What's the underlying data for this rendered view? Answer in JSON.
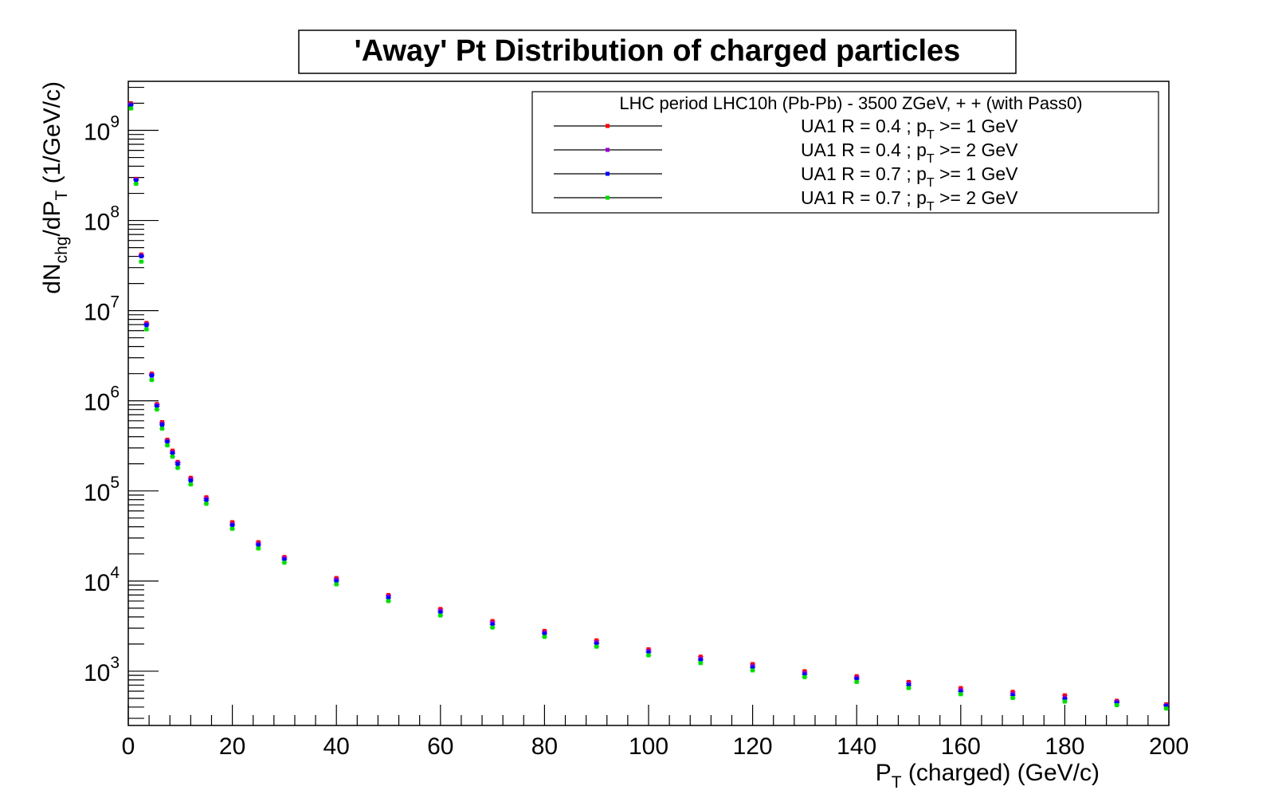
{
  "chart_data": {
    "type": "scatter",
    "title": "'Away' Pt Distribution of charged particles",
    "xlabel": {
      "main": "P",
      "sub": "T",
      "rest": " (charged) (GeV/c)"
    },
    "ylabel": {
      "p1": "dN",
      "sub1": "chg",
      "p2": "/dP",
      "sub2": "T",
      "p3": " (1/GeV/c)"
    },
    "x_ticks": [
      "0",
      "20",
      "40",
      "60",
      "80",
      "100",
      "120",
      "140",
      "160",
      "180",
      "200"
    ],
    "y_ticks": [
      {
        "base": "10",
        "exp": "3"
      },
      {
        "base": "10",
        "exp": "4"
      },
      {
        "base": "10",
        "exp": "5"
      },
      {
        "base": "10",
        "exp": "6"
      },
      {
        "base": "10",
        "exp": "7"
      },
      {
        "base": "10",
        "exp": "8"
      },
      {
        "base": "10",
        "exp": "9"
      }
    ],
    "xlim": [
      0,
      200
    ],
    "ylim": [
      250,
      3500000000
    ],
    "y_scale": "log",
    "grid": false,
    "legend_position": "top-right",
    "legend": {
      "header": "LHC period LHC10h (Pb-Pb) - 3500 ZGeV, + + (with Pass0)",
      "entries": [
        {
          "pre": "UA1 R = 0.4 ; p",
          "sub": "T",
          "post": " >= 1 GeV"
        },
        {
          "pre": "UA1 R = 0.4 ; p",
          "sub": "T",
          "post": " >= 2 GeV"
        },
        {
          "pre": "UA1 R = 0.7 ; p",
          "sub": "T",
          "post": " >= 1 GeV"
        },
        {
          "pre": "UA1 R = 0.7 ; p",
          "sub": "T",
          "post": " >= 2 GeV"
        }
      ]
    },
    "x": [
      0.5,
      1.5,
      2.5,
      3.5,
      4.5,
      5.5,
      6.5,
      7.5,
      8.5,
      9.5,
      12,
      15,
      20,
      25,
      30,
      40,
      50,
      60,
      70,
      80,
      90,
      100,
      110,
      120,
      130,
      140,
      150,
      160,
      170,
      180,
      190,
      199.5
    ],
    "series": [
      {
        "color": "#ff0000",
        "values": [
          2000000000,
          290000000,
          42000000,
          7300000,
          2000000,
          920000,
          580000,
          370000,
          280000,
          210000,
          140000,
          85000,
          45000,
          27000,
          18500,
          10800,
          7000,
          4900,
          3600,
          2800,
          2200,
          1750,
          1450,
          1200,
          1000,
          880,
          760,
          650,
          590,
          540,
          470,
          430
        ]
      },
      {
        "color": "#9900cc",
        "values": [
          1950000000,
          285000000,
          41000000,
          7100000,
          1950000,
          900000,
          560000,
          360000,
          270000,
          205000,
          135000,
          82000,
          43000,
          26000,
          18000,
          10400,
          6800,
          4700,
          3450,
          2700,
          2100,
          1680,
          1380,
          1150,
          960,
          850,
          730,
          620,
          565,
          510,
          460,
          420
        ]
      },
      {
        "color": "#0000ff",
        "values": [
          1900000000,
          280000000,
          40000000,
          6900000,
          1900000,
          870000,
          540000,
          350000,
          262000,
          198000,
          130000,
          79000,
          41500,
          25000,
          17300,
          10000,
          6500,
          4500,
          3300,
          2600,
          2020,
          1620,
          1330,
          1100,
          920,
          820,
          700,
          595,
          540,
          490,
          445,
          410
        ]
      },
      {
        "color": "#00dd00",
        "values": [
          1750000000,
          255000000,
          35000000,
          6200000,
          1700000,
          800000,
          490000,
          320000,
          240000,
          180000,
          118000,
          72000,
          38000,
          23000,
          16000,
          9200,
          6000,
          4150,
          3050,
          2400,
          1870,
          1500,
          1230,
          1020,
          860,
          760,
          650,
          555,
          505,
          460,
          420,
          385
        ]
      }
    ]
  }
}
